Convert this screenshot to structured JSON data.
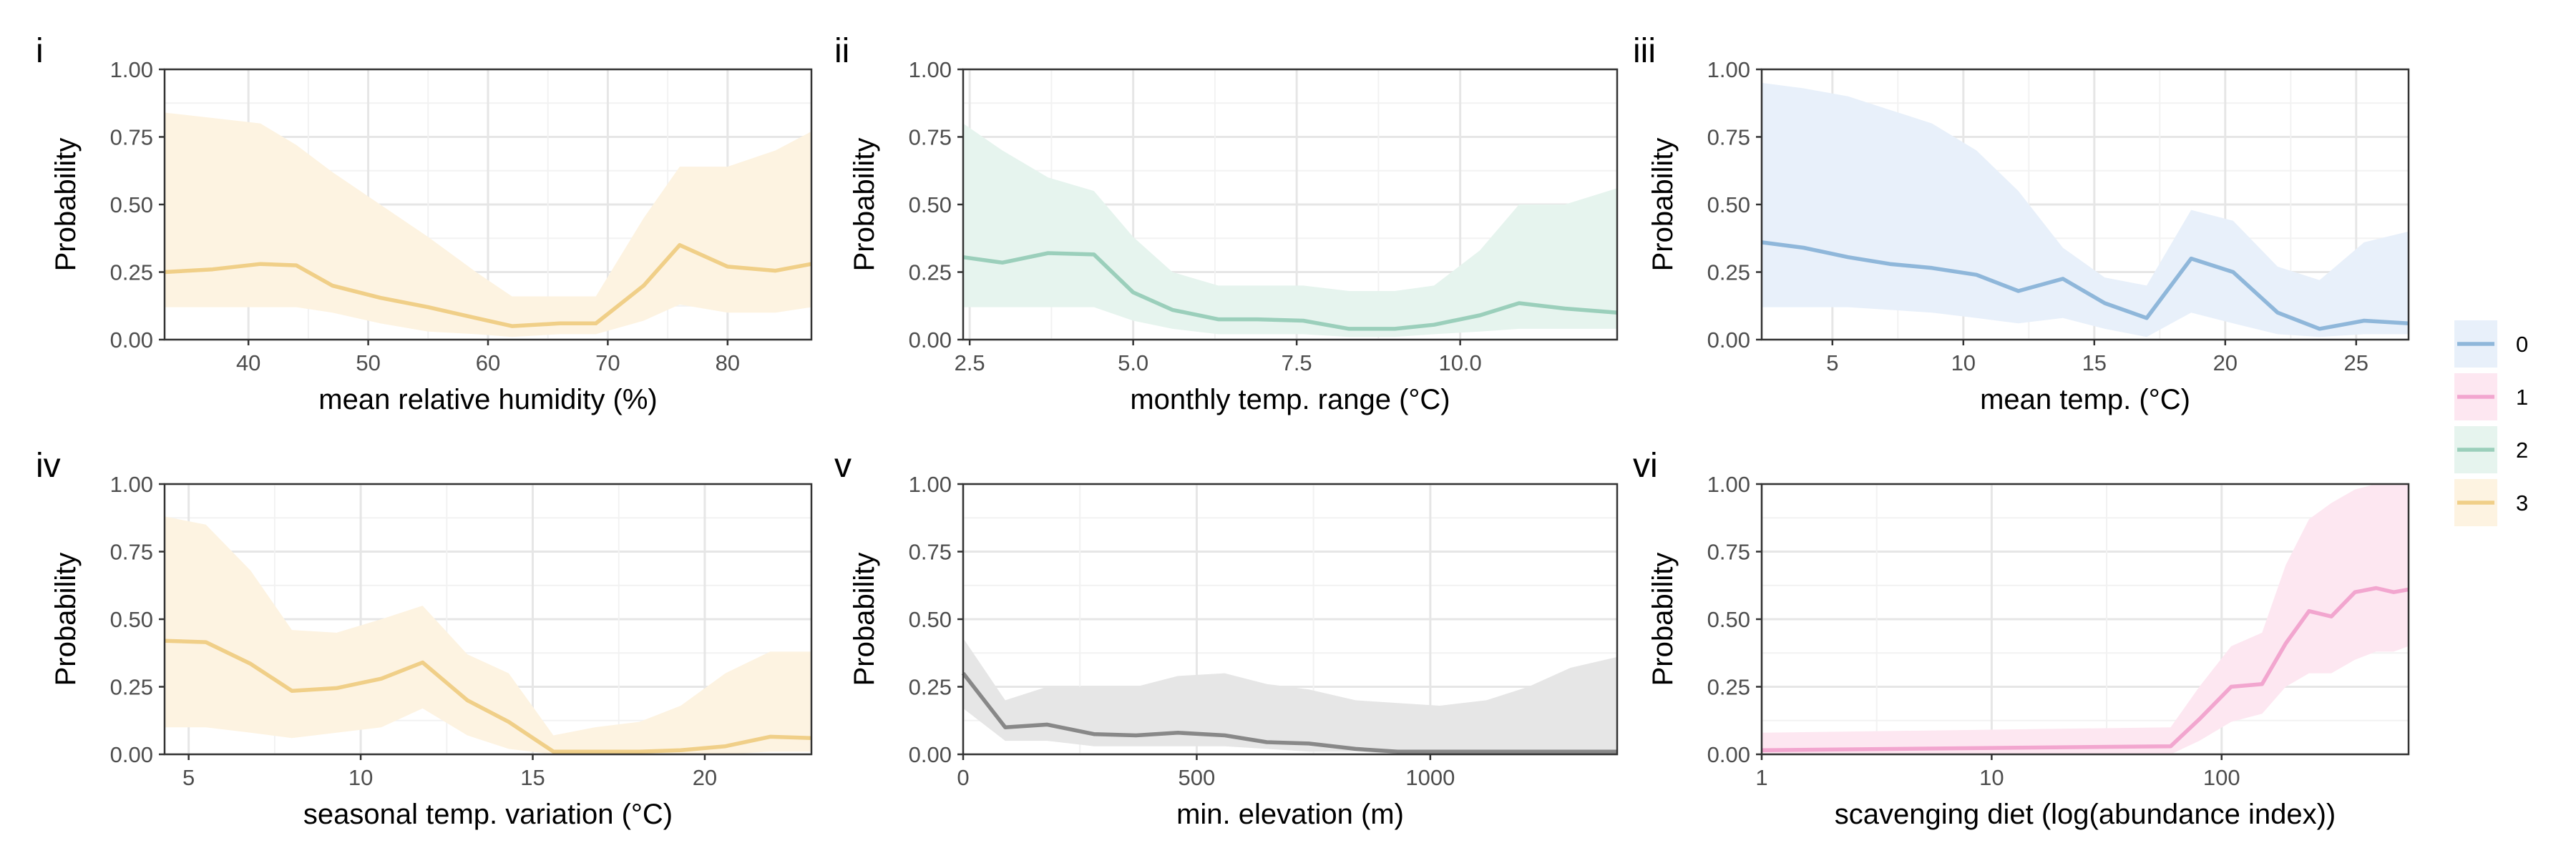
{
  "legend": {
    "entries": [
      {
        "label": "0",
        "color": "#8fb7da",
        "fill": "#e8f0fa"
      },
      {
        "label": "1",
        "color": "#f2a6cf",
        "fill": "#fde7f1"
      },
      {
        "label": "2",
        "color": "#9bcfbb",
        "fill": "#e6f4ee"
      },
      {
        "label": "3",
        "color": "#f0cf88",
        "fill": "#fdf3e1"
      }
    ]
  },
  "chart_data": [
    {
      "panel": "i",
      "type": "line",
      "xlabel": "mean relative humidity (%)",
      "ylabel": "Probability",
      "xlim": [
        33,
        87
      ],
      "ylim": [
        0,
        1
      ],
      "xscale": "linear",
      "xticks": [
        {
          "v": 40,
          "t": "40"
        },
        {
          "v": 50,
          "t": "50"
        },
        {
          "v": 60,
          "t": "60"
        },
        {
          "v": 70,
          "t": "70"
        },
        {
          "v": 80,
          "t": "80"
        }
      ],
      "yticks": [
        "0.00",
        "0.25",
        "0.50",
        "0.75",
        "1.00"
      ],
      "series": [
        {
          "name": "3",
          "color": "#f0cf88",
          "fill": "#fdf3e1",
          "x": [
            33,
            37,
            41,
            44,
            47,
            51,
            55,
            59,
            62,
            66,
            69,
            73,
            76,
            80,
            84,
            87
          ],
          "y": [
            0.25,
            0.26,
            0.28,
            0.275,
            0.2,
            0.155,
            0.12,
            0.08,
            0.05,
            0.06,
            0.06,
            0.2,
            0.35,
            0.27,
            0.255,
            0.28
          ],
          "lower": [
            0.12,
            0.12,
            0.12,
            0.12,
            0.1,
            0.06,
            0.03,
            0.02,
            0.01,
            0.02,
            0.02,
            0.07,
            0.13,
            0.1,
            0.1,
            0.12
          ],
          "upper": [
            0.84,
            0.82,
            0.8,
            0.72,
            0.62,
            0.5,
            0.38,
            0.25,
            0.16,
            0.16,
            0.16,
            0.45,
            0.64,
            0.64,
            0.7,
            0.77
          ]
        }
      ]
    },
    {
      "panel": "ii",
      "type": "line",
      "xlabel": "monthly temp. range (°C)",
      "ylabel": "Probability",
      "xlim": [
        2.4,
        12.4
      ],
      "ylim": [
        0,
        1
      ],
      "xscale": "linear",
      "xticks": [
        {
          "v": 2.5,
          "t": "2.5"
        },
        {
          "v": 5.0,
          "t": "5.0"
        },
        {
          "v": 7.5,
          "t": "7.5"
        },
        {
          "v": 10.0,
          "t": "10.0"
        }
      ],
      "yticks": [
        "0.00",
        "0.25",
        "0.50",
        "0.75",
        "1.00"
      ],
      "series": [
        {
          "name": "2",
          "color": "#9bcfbb",
          "fill": "#e6f4ee",
          "x": [
            2.4,
            3.0,
            3.7,
            4.4,
            5.0,
            5.6,
            6.3,
            6.9,
            7.6,
            8.3,
            9.0,
            9.6,
            10.3,
            10.9,
            11.6,
            12.4
          ],
          "y": [
            0.305,
            0.285,
            0.32,
            0.315,
            0.175,
            0.11,
            0.075,
            0.075,
            0.07,
            0.04,
            0.04,
            0.055,
            0.09,
            0.135,
            0.115,
            0.1
          ],
          "lower": [
            0.12,
            0.12,
            0.12,
            0.12,
            0.07,
            0.04,
            0.02,
            0.02,
            0.02,
            0.01,
            0.01,
            0.02,
            0.03,
            0.04,
            0.04,
            0.04
          ],
          "upper": [
            0.8,
            0.7,
            0.6,
            0.55,
            0.38,
            0.25,
            0.2,
            0.2,
            0.2,
            0.18,
            0.18,
            0.2,
            0.33,
            0.5,
            0.5,
            0.56
          ]
        }
      ]
    },
    {
      "panel": "iii",
      "type": "line",
      "xlabel": "mean temp. (°C)",
      "ylabel": "Probability",
      "xlim": [
        2.3,
        27
      ],
      "ylim": [
        0,
        1
      ],
      "xscale": "linear",
      "xticks": [
        {
          "v": 5,
          "t": "5"
        },
        {
          "v": 10,
          "t": "10"
        },
        {
          "v": 15,
          "t": "15"
        },
        {
          "v": 20,
          "t": "20"
        },
        {
          "v": 25,
          "t": "25"
        }
      ],
      "yticks": [
        "0.00",
        "0.25",
        "0.50",
        "0.75",
        "1.00"
      ],
      "series": [
        {
          "name": "0",
          "color": "#8fb7da",
          "fill": "#e8f0fa",
          "x": [
            2.3,
            3.9,
            5.6,
            7.2,
            8.8,
            10.5,
            12.1,
            13.8,
            15.4,
            17.0,
            18.7,
            20.3,
            22.0,
            23.6,
            25.3,
            27.0
          ],
          "y": [
            0.36,
            0.34,
            0.305,
            0.28,
            0.265,
            0.24,
            0.18,
            0.225,
            0.135,
            0.08,
            0.3,
            0.25,
            0.1,
            0.04,
            0.07,
            0.06
          ],
          "lower": [
            0.12,
            0.12,
            0.12,
            0.11,
            0.1,
            0.08,
            0.06,
            0.08,
            0.04,
            0.01,
            0.1,
            0.06,
            0.02,
            0.01,
            0.02,
            0.02
          ],
          "upper": [
            0.95,
            0.93,
            0.9,
            0.85,
            0.8,
            0.7,
            0.55,
            0.34,
            0.23,
            0.2,
            0.48,
            0.44,
            0.27,
            0.22,
            0.36,
            0.4
          ]
        }
      ]
    },
    {
      "panel": "iv",
      "type": "line",
      "xlabel": "seasonal temp. variation (°C)",
      "ylabel": "Probability",
      "xlim": [
        4.3,
        23.1
      ],
      "ylim": [
        0,
        1
      ],
      "xscale": "linear",
      "xticks": [
        {
          "v": 5,
          "t": "5"
        },
        {
          "v": 10,
          "t": "10"
        },
        {
          "v": 15,
          "t": "15"
        },
        {
          "v": 20,
          "t": "20"
        }
      ],
      "yticks": [
        "0.00",
        "0.25",
        "0.50",
        "0.75",
        "1.00"
      ],
      "series": [
        {
          "name": "3",
          "color": "#f0cf88",
          "fill": "#fdf3e1",
          "x": [
            4.3,
            5.5,
            6.8,
            8.0,
            9.3,
            10.6,
            11.8,
            13.1,
            14.3,
            15.6,
            16.8,
            18.1,
            19.3,
            20.6,
            21.9,
            23.1
          ],
          "y": [
            0.42,
            0.415,
            0.335,
            0.235,
            0.245,
            0.28,
            0.34,
            0.2,
            0.12,
            0.01,
            0.01,
            0.01,
            0.015,
            0.03,
            0.065,
            0.06
          ],
          "lower": [
            0.1,
            0.1,
            0.08,
            0.06,
            0.08,
            0.1,
            0.17,
            0.07,
            0.02,
            0.0,
            0.0,
            0.0,
            0.0,
            0.0,
            0.01,
            0.01
          ],
          "upper": [
            0.88,
            0.85,
            0.68,
            0.46,
            0.45,
            0.5,
            0.55,
            0.37,
            0.3,
            0.07,
            0.1,
            0.12,
            0.18,
            0.3,
            0.38,
            0.38
          ]
        }
      ]
    },
    {
      "panel": "v",
      "type": "line",
      "xlabel": "min. elevation (m)",
      "ylabel": "Probability",
      "xlim": [
        0,
        1400
      ],
      "ylim": [
        0,
        1
      ],
      "xscale": "linear",
      "xticks": [
        {
          "v": 0,
          "t": "0"
        },
        {
          "v": 500,
          "t": "500"
        },
        {
          "v": 1000,
          "t": "1000"
        }
      ],
      "yticks": [
        "0.00",
        "0.25",
        "0.50",
        "0.75",
        "1.00"
      ],
      "series": [
        {
          "name": "",
          "color": "#888888",
          "fill": "#e6e6e6",
          "x": [
            0,
            90,
            180,
            280,
            370,
            460,
            560,
            650,
            740,
            840,
            930,
            1020,
            1120,
            1210,
            1300,
            1400
          ],
          "y": [
            0.3,
            0.1,
            0.11,
            0.075,
            0.07,
            0.08,
            0.07,
            0.045,
            0.04,
            0.02,
            0.01,
            0.01,
            0.01,
            0.01,
            0.01,
            0.01
          ],
          "lower": [
            0.17,
            0.05,
            0.05,
            0.03,
            0.03,
            0.03,
            0.03,
            0.02,
            0.01,
            0.01,
            0.0,
            0.0,
            0.0,
            0.0,
            0.0,
            0.0
          ],
          "upper": [
            0.43,
            0.2,
            0.25,
            0.25,
            0.25,
            0.29,
            0.3,
            0.26,
            0.24,
            0.2,
            0.19,
            0.18,
            0.2,
            0.25,
            0.32,
            0.36
          ]
        }
      ]
    },
    {
      "panel": "vi",
      "type": "line",
      "xlabel": "scavenging diet (log(abundance index))",
      "ylabel": "Probability",
      "xlim": [
        1,
        650
      ],
      "ylim": [
        0,
        1
      ],
      "xscale": "log",
      "xticks": [
        {
          "v": 1,
          "t": "1"
        },
        {
          "v": 10,
          "t": "10"
        },
        {
          "v": 100,
          "t": "100"
        }
      ],
      "yticks": [
        "0.00",
        "0.25",
        "0.50",
        "0.75",
        "1.00"
      ],
      "series": [
        {
          "name": "1",
          "color": "#f2a6cf",
          "fill": "#fde7f1",
          "x": [
            1,
            60,
            80,
            110,
            150,
            190,
            240,
            300,
            380,
            470,
            560,
            650
          ],
          "y": [
            0.015,
            0.03,
            0.13,
            0.25,
            0.26,
            0.41,
            0.53,
            0.51,
            0.6,
            0.615,
            0.6,
            0.61
          ],
          "lower": [
            0.0,
            0.0,
            0.05,
            0.12,
            0.15,
            0.25,
            0.3,
            0.3,
            0.35,
            0.38,
            0.38,
            0.4
          ],
          "upper": [
            0.08,
            0.1,
            0.25,
            0.4,
            0.45,
            0.7,
            0.87,
            0.93,
            0.98,
            1.0,
            1.0,
            1.0
          ]
        }
      ]
    }
  ]
}
